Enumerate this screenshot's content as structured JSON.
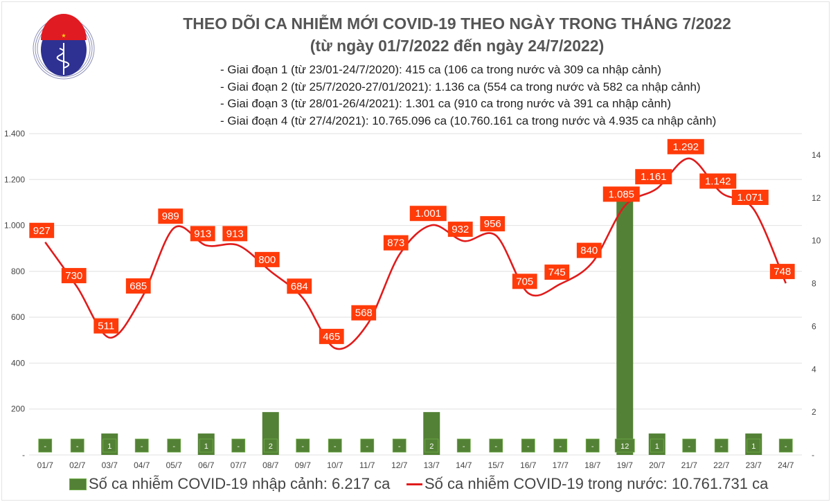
{
  "logo": {
    "text_top": "BỘ Y TẾ",
    "text_bottom": "MINISTRY OF HEALTH"
  },
  "title": {
    "line1": "THEO DÕI CA NHIỄM MỚI COVID-19 THEO NGÀY TRONG THÁNG 7/2022",
    "line2": "(từ ngày 01/7/2022 đến ngày 24/7/2022)"
  },
  "notes": [
    "- Giai đoạn 1 (từ 23/01-24/7/2020): 415 ca (106 ca trong nước và 309 ca nhập cảnh)",
    "- Giai đoạn 2 (từ 25/7/2020-27/01/2021): 1.136 ca (554 ca trong nước và 582 ca nhập cảnh)",
    "- Giai đoạn 3 (từ 28/01-26/4/2021): 1.301 ca (910 ca trong nước và 391 ca nhập cảnh)",
    "- Giai đoạn 4 (từ 27/4/2021): 10.765.096 ca (10.760.161 ca trong nước và 4.935 ca nhập cảnh)"
  ],
  "colors": {
    "bar": "#538135",
    "line": "#e11b1b",
    "label_box": "#ff3b0a",
    "grid": "#e6e6e6"
  },
  "chart_data": {
    "type": "bar+line",
    "categories": [
      "01/7",
      "02/7",
      "03/7",
      "04/7",
      "05/7",
      "06/7",
      "07/7",
      "08/7",
      "09/7",
      "10/7",
      "11/7",
      "12/7",
      "13/7",
      "14/7",
      "15/7",
      "16/7",
      "17/7",
      "18/7",
      "19/7",
      "20/7",
      "21/7",
      "22/7",
      "23/7",
      "24/7"
    ],
    "series": [
      {
        "name": "Số ca nhiễm COVID-19 nhập cảnh: 6.217 ca",
        "type": "bar",
        "axis": "right",
        "values": [
          0,
          0,
          1,
          0,
          0,
          1,
          0,
          2,
          0,
          0,
          0,
          0,
          2,
          0,
          0,
          0,
          0,
          0,
          12,
          1,
          0,
          0,
          1,
          0
        ]
      },
      {
        "name": "Số ca nhiễm COVID-19 trong nước: 10.761.731 ca",
        "type": "line",
        "axis": "left",
        "values": [
          927,
          730,
          511,
          685,
          989,
          913,
          913,
          800,
          684,
          465,
          568,
          873,
          1001,
          932,
          956,
          705,
          745,
          840,
          1085,
          1161,
          1292,
          1142,
          1071,
          748
        ]
      }
    ],
    "left_axis": {
      "range": [
        0,
        1400
      ],
      "ticks": [
        "-",
        "200",
        "400",
        "600",
        "800",
        "1.000",
        "1.200",
        "1.400"
      ]
    },
    "right_axis": {
      "range": [
        0,
        14
      ],
      "ticks": [
        "-",
        "2",
        "4",
        "6",
        "8",
        "10",
        "12",
        "14"
      ]
    },
    "grid": true,
    "legend": "bottom"
  }
}
